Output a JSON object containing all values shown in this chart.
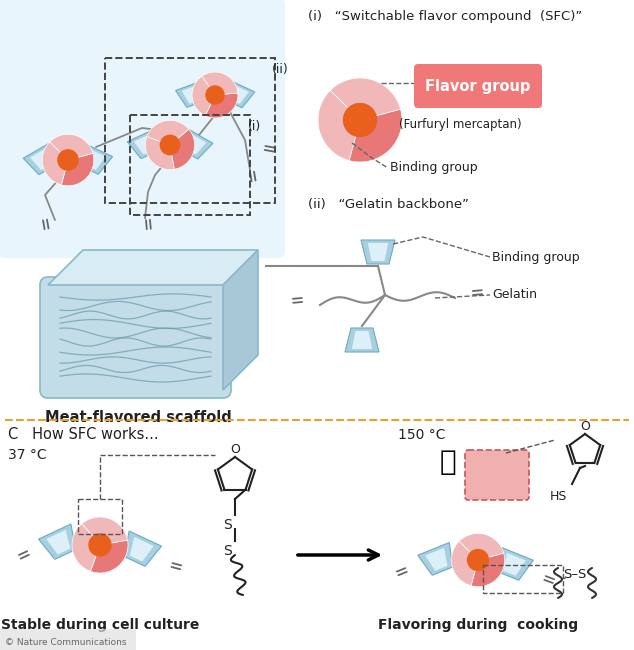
{
  "bg_color": "#ffffff",
  "light_blue": "#a8cfe0",
  "light_blue2": "#c5dfe8",
  "scaffold_bg": "#daeef8",
  "pink_dark": "#e87878",
  "pink_light": "#f0b8b8",
  "pink_med": "#e8a0a0",
  "orange": "#e8601c",
  "flavor_box_color": "#f07878",
  "dashed_color": "#666666",
  "line_color": "#888888",
  "text_color": "#222222",
  "panel_border": "#e8a030",
  "title_i": "(i)   “Switchable flavor compound  (SFC)”",
  "title_ii": "(ii)   “Gelatin backbone”",
  "label_flavor_group": "Flavor group",
  "label_furfuryl": "(Furfuryl mercaptan)",
  "label_binding_group": "Binding group",
  "label_binding_group2": "Binding group",
  "label_gelatin": "Gelatin",
  "label_scaffold": "Meat-flavored scaffold",
  "panel_c_title": "C   How SFC works...",
  "label_37": "37 °C",
  "label_150": "150 °C",
  "label_stable": "Stable during cell culture",
  "label_flavoring": "Flavoring during  cooking",
  "nature_text": "© Nature Communications"
}
